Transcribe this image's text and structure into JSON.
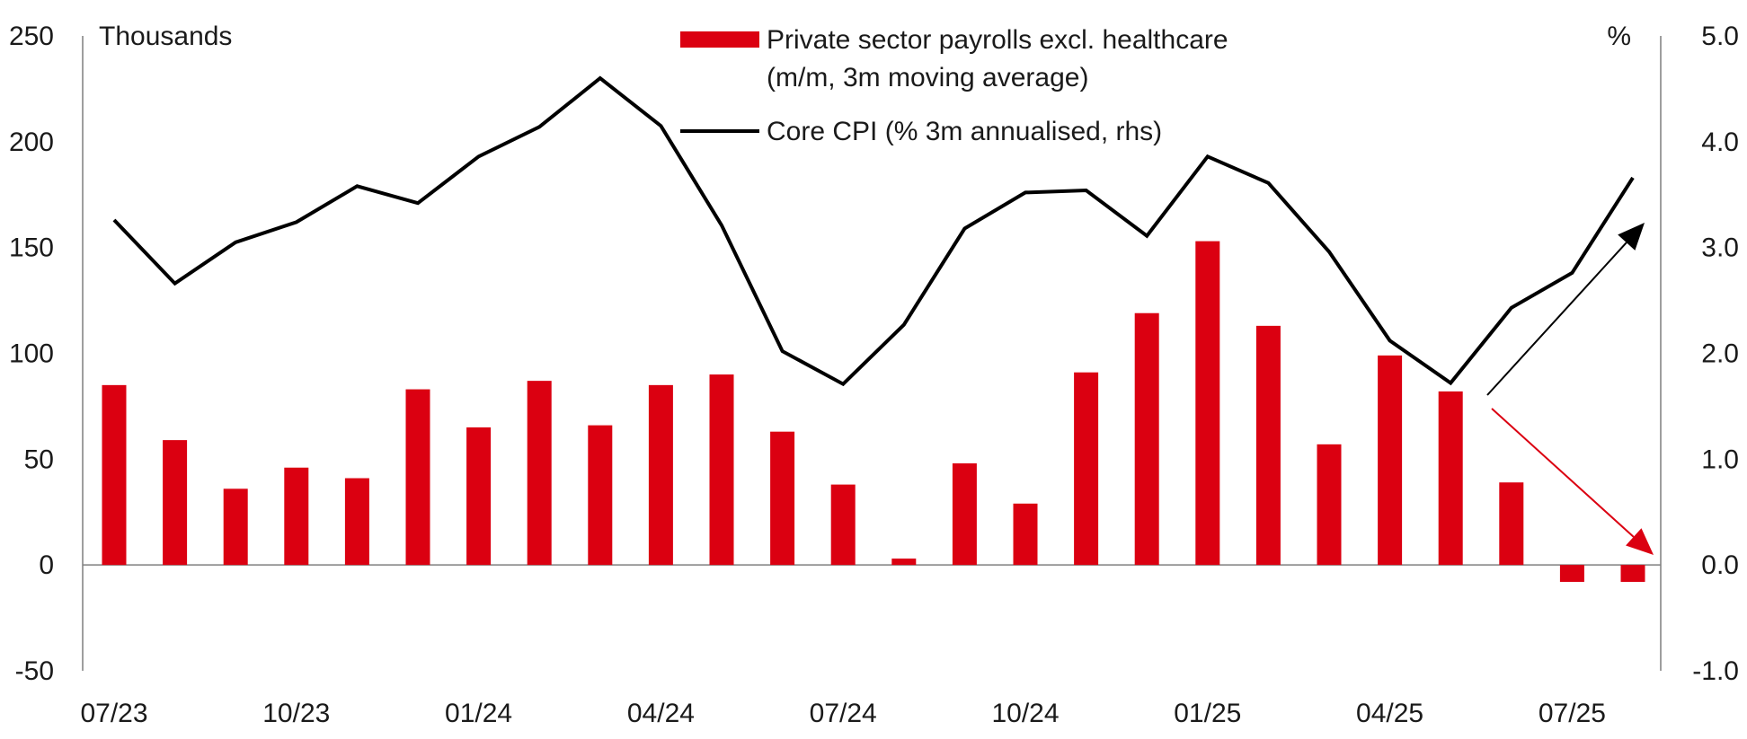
{
  "chart_data": {
    "type": "bar",
    "left_axis_unit": "Thousands",
    "right_axis_unit": "%",
    "left_ylim": [
      -50,
      250
    ],
    "left_ticks": [
      "250",
      "200",
      "150",
      "100",
      "50",
      "0",
      "-50"
    ],
    "left_tick_values": [
      250,
      200,
      150,
      100,
      50,
      0,
      -50
    ],
    "right_ylim": [
      -1.0,
      5.0
    ],
    "right_ticks": [
      "5.0",
      "4.0",
      "3.0",
      "2.0",
      "1.0",
      "0.0",
      "-1.0"
    ],
    "right_tick_values": [
      5.0,
      4.0,
      3.0,
      2.0,
      1.0,
      0.0,
      -1.0
    ],
    "x_tick_labels": [
      "07/23",
      "10/23",
      "01/24",
      "04/24",
      "07/24",
      "10/24",
      "01/25",
      "04/25",
      "07/25"
    ],
    "x_tick_indices": [
      0,
      3,
      6,
      9,
      12,
      15,
      18,
      21,
      24
    ],
    "x": [
      "07/23",
      "08/23",
      "09/23",
      "10/23",
      "11/23",
      "12/23",
      "01/24",
      "02/24",
      "03/24",
      "04/24",
      "05/24",
      "06/24",
      "07/24",
      "08/24",
      "09/24",
      "10/24",
      "11/24",
      "12/24",
      "01/25",
      "02/25",
      "03/25",
      "04/25",
      "05/25",
      "06/25",
      "07/25",
      "08/25"
    ],
    "series": [
      {
        "name": "Private sector payrolls excl. healthcare",
        "name_line2": "(m/m, 3m moving average)",
        "type": "bar",
        "axis": "left",
        "color": "#db0011",
        "values": [
          85,
          59,
          36,
          46,
          41,
          83,
          65,
          87,
          66,
          85,
          90,
          63,
          38,
          3,
          48,
          29,
          91,
          119,
          153,
          113,
          57,
          99,
          82,
          39,
          -8,
          -8
        ]
      },
      {
        "name": "Core CPI (% 3m annualised, rhs)",
        "type": "line",
        "axis": "right",
        "color": "#000000",
        "values": [
          3.26,
          2.66,
          3.05,
          3.24,
          3.58,
          3.42,
          3.86,
          4.14,
          4.6,
          4.15,
          3.21,
          2.02,
          1.71,
          2.27,
          3.18,
          3.52,
          3.54,
          3.11,
          3.86,
          3.61,
          2.96,
          2.12,
          1.72,
          2.43,
          2.76,
          3.66
        ]
      }
    ],
    "annotations": [
      {
        "type": "arrow",
        "color": "#000000",
        "direction": "up"
      },
      {
        "type": "arrow",
        "color": "#db0011",
        "direction": "down"
      }
    ]
  }
}
